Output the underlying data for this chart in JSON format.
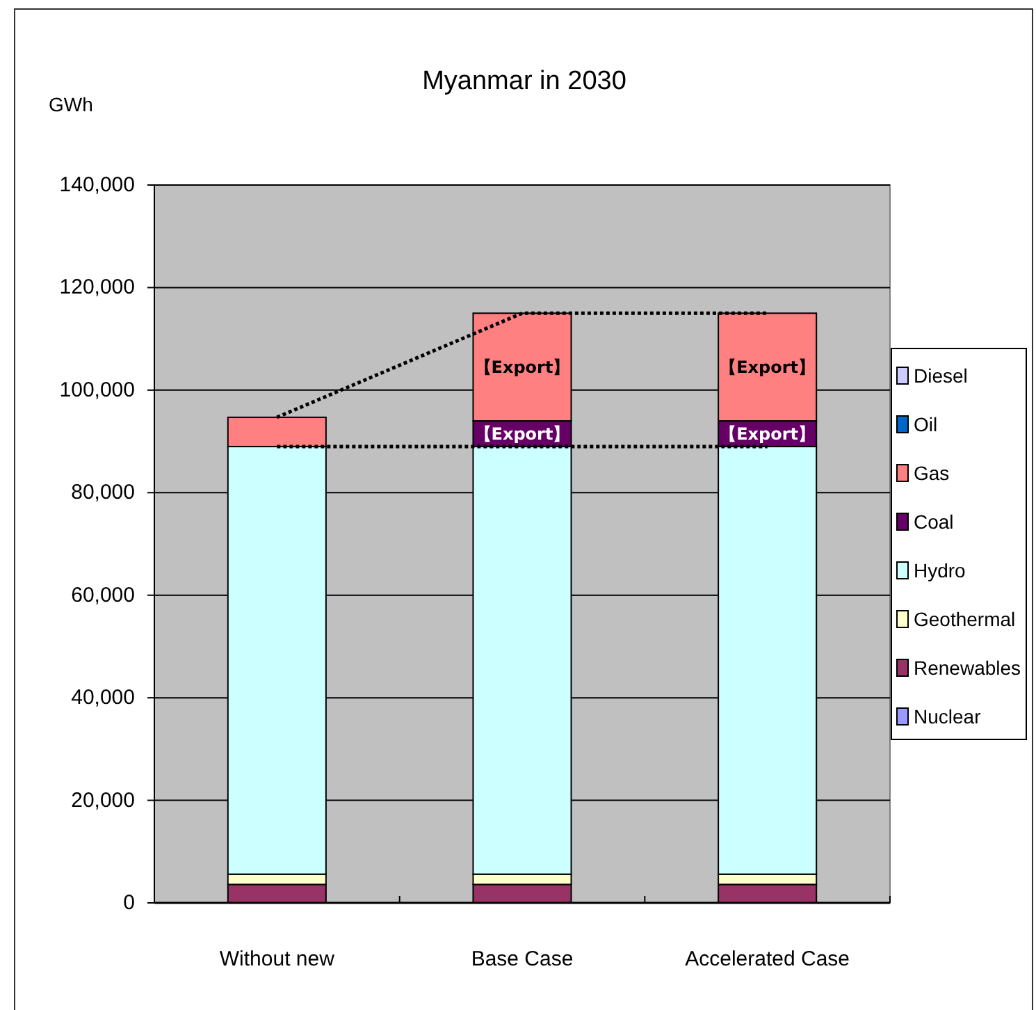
{
  "chart_data": {
    "type": "bar",
    "title": "Myanmar in 2030",
    "ylabel": "GWh",
    "categories": [
      "Without new",
      "Base Case",
      "Accelerated Case"
    ],
    "stacked": true,
    "series": [
      {
        "name": "Nuclear",
        "color": "#9999ff",
        "values": [
          0,
          0,
          0
        ]
      },
      {
        "name": "Renewables",
        "color": "#993366",
        "values": [
          3600,
          3600,
          3600
        ]
      },
      {
        "name": "Geothermal",
        "color": "#ffffcc",
        "values": [
          2000,
          2000,
          2000
        ]
      },
      {
        "name": "Hydro",
        "color": "#ccffff",
        "values": [
          83400,
          83400,
          83400
        ]
      },
      {
        "name": "Coal",
        "color": "#660066",
        "values": [
          0,
          5000,
          5000
        ]
      },
      {
        "name": "Gas",
        "color": "#ff8080",
        "values": [
          5700,
          21000,
          21000
        ]
      },
      {
        "name": "Oil",
        "color": "#0066cc",
        "values": [
          0,
          0,
          0
        ]
      },
      {
        "name": "Diesel",
        "color": "#ccccff",
        "values": [
          0,
          0,
          0
        ]
      },
      {
        "type": "line",
        "color": "#000000",
        "line_style": "dotted",
        "values": [
          89000,
          89000,
          89000
        ]
      },
      {
        "type": "line",
        "color": "#000000",
        "line_style": "dotted",
        "values": [
          94700,
          115000,
          115000
        ]
      }
    ],
    "ylim": [
      0,
      140000
    ],
    "yticks": [
      0,
      {
        "value": 20000,
        "label": "20,000"
      },
      {
        "value": 40000,
        "label": "40,000"
      },
      {
        "value": 60000,
        "label": "60,000"
      },
      {
        "value": 80000,
        "label": "80,000"
      },
      {
        "value": 100000,
        "label": "100,000"
      },
      {
        "value": 120000,
        "label": "120,000"
      },
      {
        "value": 140000,
        "label": "140,000"
      }
    ],
    "grid": "y",
    "legend": "right",
    "annotations": [
      {
        "text": "【Export】",
        "x": "Base Case",
        "y": 115000
      },
      {
        "text": "【Export】",
        "x": "Accelerated Case",
        "y": 115000
      },
      {
        "text": "【Export】",
        "x": "Base Case",
        "y": 94000
      },
      {
        "text": "【Export】",
        "x": "Accelerated Case",
        "y": 94000
      }
    ]
  }
}
